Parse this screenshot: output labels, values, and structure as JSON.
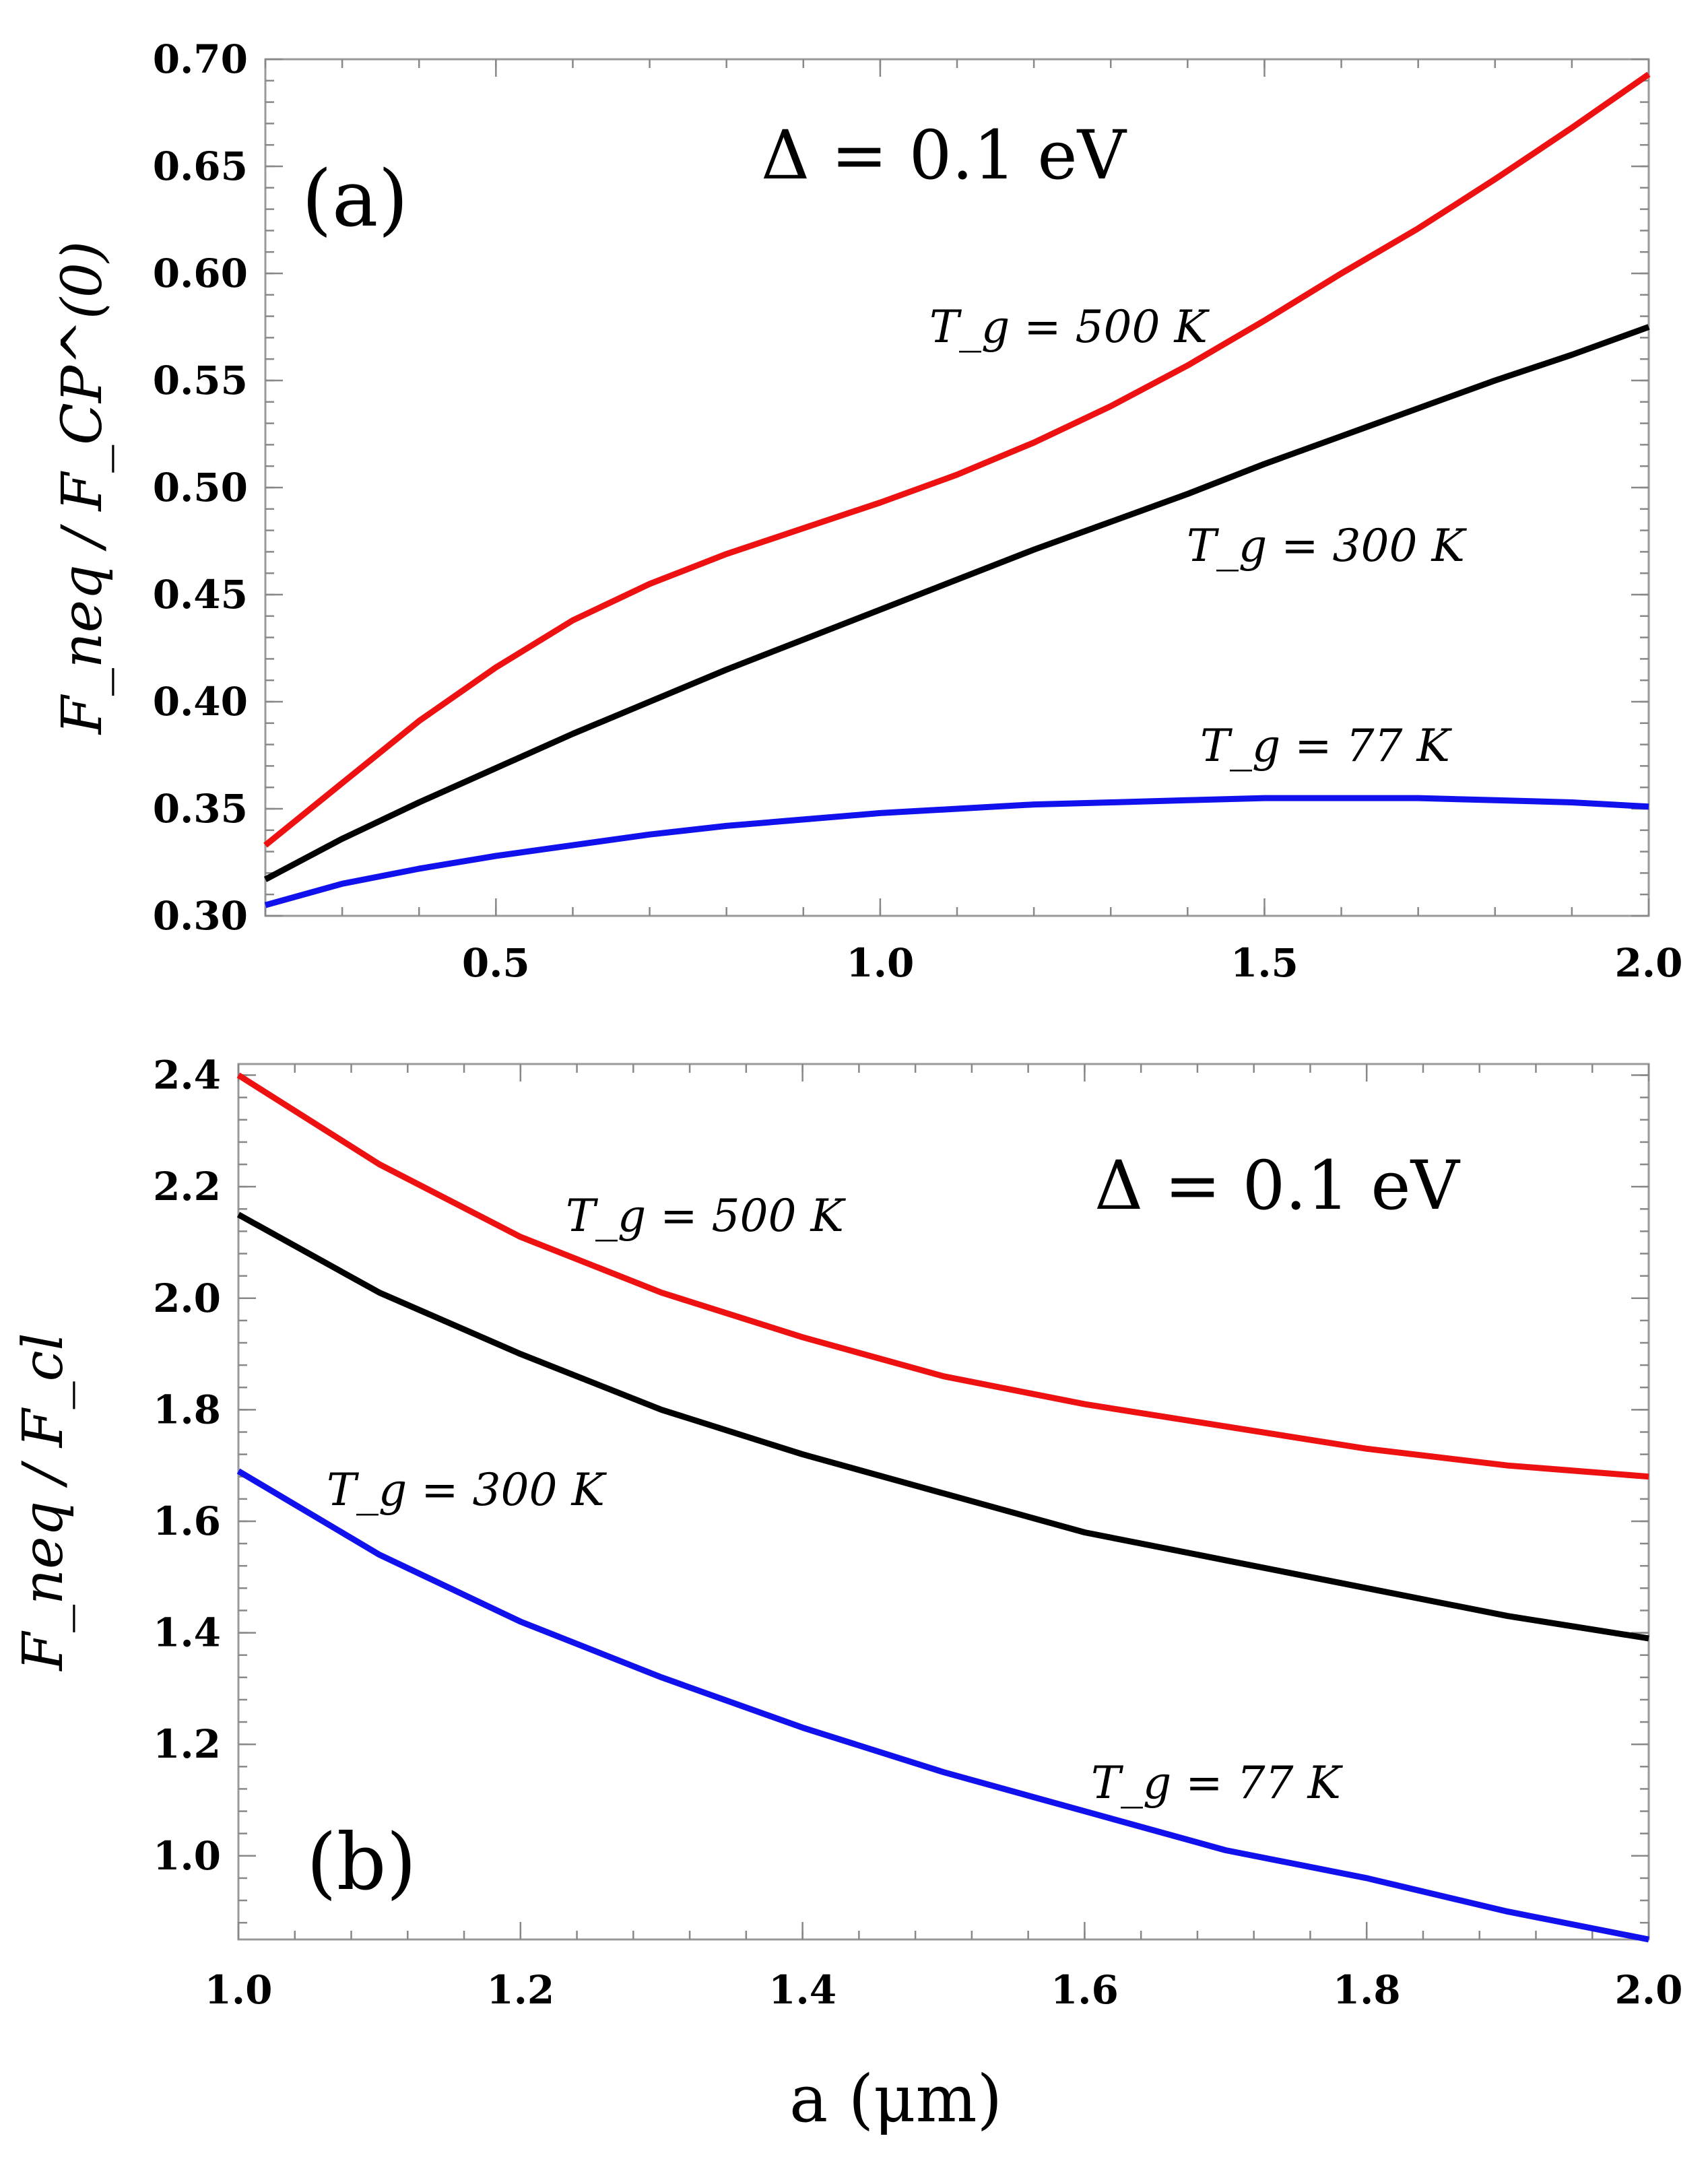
{
  "x_axis_label": "a (μm)",
  "chart_data": [
    {
      "type": "line",
      "panel_label": "(a)",
      "annotation": "Δ = 0.1 eV",
      "ylabel": "F_neq / F_CP^(0)",
      "xlabel": "",
      "xlim": [
        0.2,
        2.0
      ],
      "ylim": [
        0.3,
        0.7
      ],
      "xticks": [
        0.5,
        1.0,
        1.5,
        2.0
      ],
      "xtick_labels": [
        "0.5",
        "1.0",
        "1.5",
        "2.0"
      ],
      "yticks": [
        0.3,
        0.35,
        0.4,
        0.45,
        0.5,
        0.55,
        0.6,
        0.65,
        0.7
      ],
      "ytick_labels": [
        "0.30",
        "0.35",
        "0.40",
        "0.45",
        "0.50",
        "0.55",
        "0.60",
        "0.65",
        "0.70"
      ],
      "x": [
        0.2,
        0.3,
        0.4,
        0.5,
        0.6,
        0.7,
        0.8,
        0.9,
        1.0,
        1.1,
        1.2,
        1.3,
        1.4,
        1.5,
        1.6,
        1.7,
        1.8,
        1.9,
        2.0
      ],
      "series": [
        {
          "name": "T_g = 500 K",
          "label": "T_g = 500 K",
          "color": "#ee1111",
          "values": [
            0.333,
            0.362,
            0.391,
            0.416,
            0.438,
            0.455,
            0.469,
            0.481,
            0.493,
            0.506,
            0.521,
            0.538,
            0.557,
            0.578,
            0.6,
            0.621,
            0.644,
            0.668,
            0.693
          ]
        },
        {
          "name": "T_g = 300 K",
          "label": "T_g = 300 K",
          "color": "#000000",
          "values": [
            0.317,
            0.336,
            0.353,
            0.369,
            0.385,
            0.4,
            0.415,
            0.429,
            0.443,
            0.457,
            0.471,
            0.484,
            0.497,
            0.511,
            0.524,
            0.537,
            0.55,
            0.562,
            0.575
          ]
        },
        {
          "name": "T_g = 77 K",
          "label": "T_g = 77 K",
          "color": "#1111ee",
          "values": [
            0.305,
            0.315,
            0.322,
            0.328,
            0.333,
            0.338,
            0.342,
            0.345,
            0.348,
            0.35,
            0.352,
            0.353,
            0.354,
            0.355,
            0.355,
            0.355,
            0.354,
            0.353,
            0.351
          ]
        }
      ]
    },
    {
      "type": "line",
      "panel_label": "(b)",
      "annotation": "Δ = 0.1 eV",
      "ylabel": "F_neq / F_cl",
      "xlabel": "a (μm)",
      "xlim": [
        1.0,
        2.0
      ],
      "ylim": [
        0.85,
        2.42
      ],
      "xticks": [
        1.0,
        1.2,
        1.4,
        1.6,
        1.8,
        2.0
      ],
      "xtick_labels": [
        "1.0",
        "1.2",
        "1.4",
        "1.6",
        "1.8",
        "2.0"
      ],
      "yticks": [
        1.0,
        1.2,
        1.4,
        1.6,
        1.8,
        2.0,
        2.2,
        2.4
      ],
      "ytick_labels": [
        "1.0",
        "1.2",
        "1.4",
        "1.6",
        "1.8",
        "2.0",
        "2.2",
        "2.4"
      ],
      "x": [
        1.0,
        1.1,
        1.2,
        1.3,
        1.4,
        1.5,
        1.6,
        1.7,
        1.8,
        1.9,
        2.0
      ],
      "series": [
        {
          "name": "T_g = 500 K",
          "label": "T_g = 500 K",
          "color": "#ee1111",
          "values": [
            2.4,
            2.24,
            2.11,
            2.01,
            1.93,
            1.86,
            1.81,
            1.77,
            1.73,
            1.7,
            1.68
          ]
        },
        {
          "name": "T_g = 300 K",
          "label": "T_g = 300 K",
          "color": "#000000",
          "values": [
            2.15,
            2.01,
            1.9,
            1.8,
            1.72,
            1.65,
            1.58,
            1.53,
            1.48,
            1.43,
            1.39
          ]
        },
        {
          "name": "T_g = 77 K",
          "label": "T_g = 77 K",
          "color": "#1111ee",
          "values": [
            1.69,
            1.54,
            1.42,
            1.32,
            1.23,
            1.15,
            1.08,
            1.01,
            0.96,
            0.9,
            0.85
          ]
        }
      ]
    }
  ]
}
